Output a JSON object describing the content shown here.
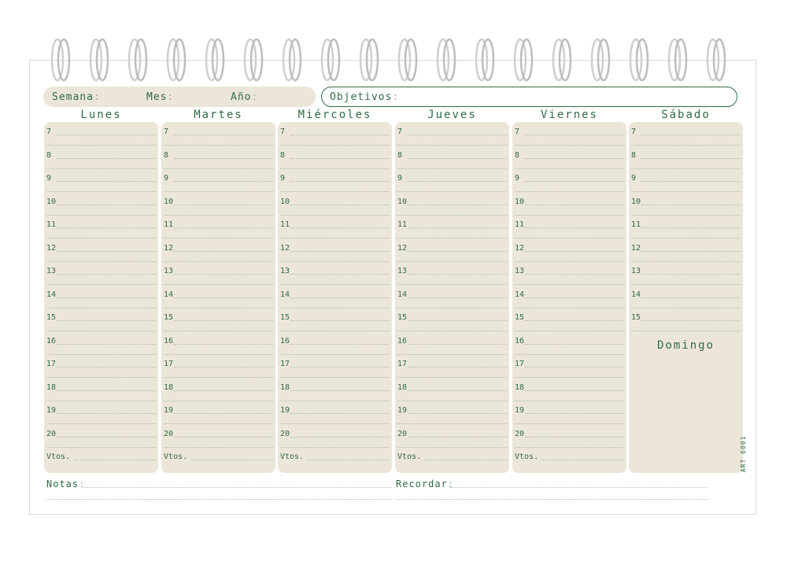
{
  "header": {
    "week_label": "Semana",
    "month_label": "Mes",
    "year_label": "Año",
    "objectives_label": "Objetivos"
  },
  "days": [
    {
      "name": "Lunes"
    },
    {
      "name": "Martes"
    },
    {
      "name": "Miércoles"
    },
    {
      "name": "Jueves"
    },
    {
      "name": "Viernes"
    },
    {
      "name": "Sábado"
    }
  ],
  "hours": [
    "7",
    "8",
    "9",
    "10",
    "11",
    "12",
    "13",
    "14",
    "15",
    "16",
    "17",
    "18",
    "19",
    "20"
  ],
  "saturday_hours": [
    "7",
    "8",
    "9",
    "10",
    "11",
    "12",
    "13",
    "14",
    "15"
  ],
  "vtos_label": "Vtos.",
  "sunday_label": "Domingo",
  "footer": {
    "notes_label": "Notas",
    "remember_label": "Recordar"
  },
  "article_code": "ART 6001",
  "colors": {
    "accent_green": "#2f6b45",
    "panel_beige": "#ece6d8",
    "ring_gray": "#c8c8c8"
  },
  "ring_icon": "spiral-ring-icon"
}
